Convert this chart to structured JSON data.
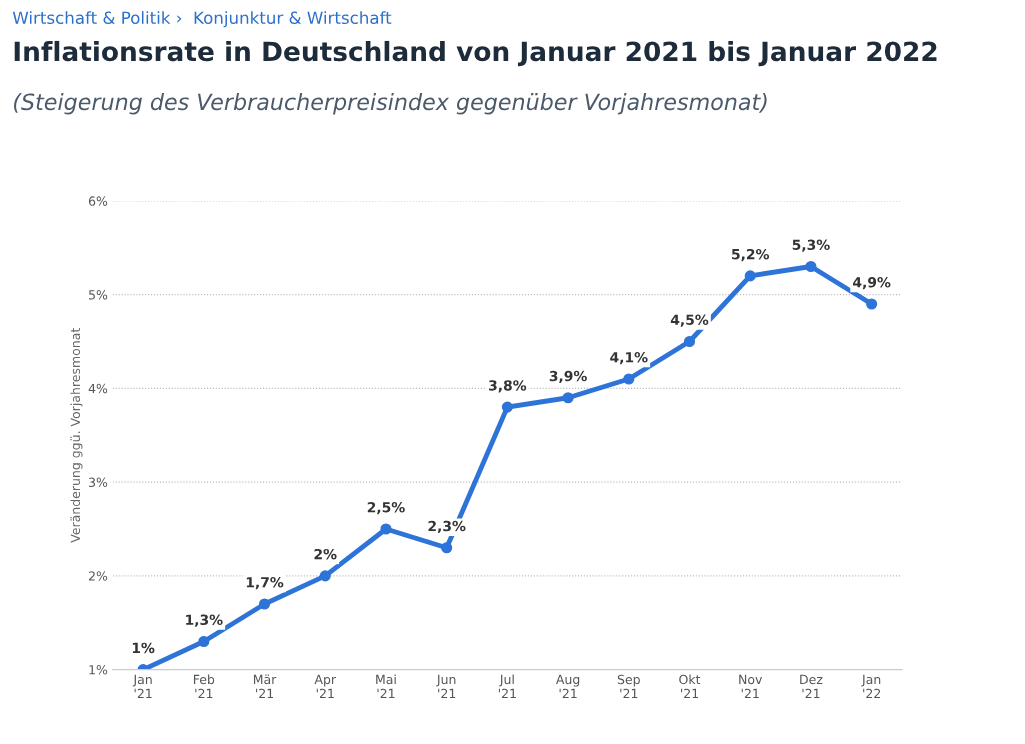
{
  "chart_data": {
    "type": "line",
    "title": "Inflationsrate in Deutschland von Januar 2021 bis Januar 2022",
    "subtitle": "(Steigerung des Verbraucherpreisindex gegenüber Vorjahresmonat)",
    "ylabel": "Veränderung ggü. Vorjahresmonat",
    "annotations": [
      "Wirtschaft & Politik ›  Konjunktur & Wirtschaft"
    ],
    "categories": [
      "Jan\n'21",
      "Feb\n'21",
      "Mär\n'21",
      "Apr\n'21",
      "Mai\n'21",
      "Jun\n'21",
      "Jul\n'21",
      "Aug\n'21",
      "Sep\n'21",
      "Okt\n'21",
      "Nov\n'21",
      "Dez\n'21",
      "Jan\n'22"
    ],
    "series": [
      {
        "color": "#2e74d8",
        "values": [
          1,
          1.3,
          1.7,
          2,
          2.5,
          2.3,
          3.8,
          3.9,
          4.1,
          4.5,
          5.2,
          5.3,
          4.9
        ],
        "value_labels": [
          "1%",
          "1,3%",
          "1,7%",
          "2%",
          "2,5%",
          "2,3%",
          "3,8%",
          "3,9%",
          "4,1%",
          "4,5%",
          "5,2%",
          "5,3%",
          "4,9%"
        ]
      }
    ],
    "ylim": [
      1,
      6
    ],
    "yticks": [
      {
        "value": 1,
        "label": "1%"
      },
      {
        "value": 2,
        "label": "2%"
      },
      {
        "value": 3,
        "label": "3%"
      },
      {
        "value": 4,
        "label": "4%"
      },
      {
        "value": 5,
        "label": "5%"
      },
      {
        "value": 6,
        "label": "6%"
      }
    ],
    "grid": "y",
    "marker": "circle",
    "line_style": "solid",
    "legend": false
  }
}
